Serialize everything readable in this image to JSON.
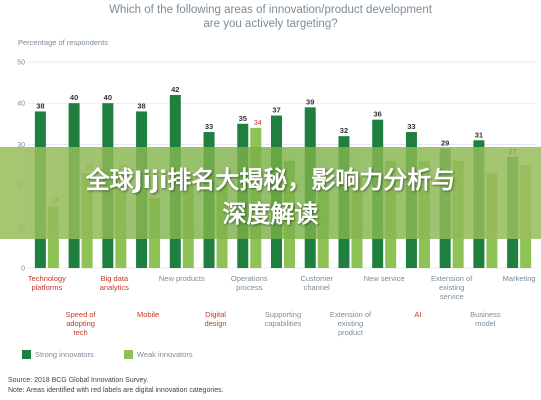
{
  "chart_data": {
    "type": "bar",
    "title": "Which of the following areas of innovation/product development are you actively targeting?",
    "ylabel": "Percentage of respondents",
    "ylim": [
      0,
      50
    ],
    "yticks": [
      0,
      10,
      20,
      30,
      40,
      50
    ],
    "categories": [
      "Technology platforms",
      "Speed of adopting tech",
      "Big data analytics",
      "Mobile",
      "New products",
      "Digital design",
      "Operations process",
      "Supporting capabilities",
      "Customer channel",
      "Extension of existing product",
      "New service",
      "AI",
      "Extension of existing service",
      "Business model",
      "Marketing"
    ],
    "red_label_categories": [
      "Technology platforms",
      "Speed of adopting tech",
      "Big data analytics",
      "Mobile",
      "Digital design",
      "AI"
    ],
    "series": [
      {
        "name": "Strong innovators",
        "color": "#1e7f3f",
        "values": [
          38,
          40,
          40,
          38,
          42,
          33,
          35,
          37,
          39,
          32,
          36,
          33,
          29,
          31,
          27
        ]
      },
      {
        "name": "Weak innovators",
        "color": "#8fc255",
        "values": [
          15,
          23,
          23,
          17,
          23,
          20,
          34,
          26,
          24,
          22,
          26,
          26,
          26,
          23,
          25
        ]
      }
    ],
    "value_labels": [
      {
        "strong": "38",
        "weak": "15"
      },
      {
        "strong": "40",
        "weak": "23"
      },
      {
        "strong": "40",
        "weak": "23"
      },
      {
        "strong": "38",
        "weak": "17"
      },
      {
        "strong": "42",
        "weak": ""
      },
      {
        "strong": "33",
        "weak": ""
      },
      {
        "strong": "35",
        "weak": "34"
      },
      {
        "strong": "37",
        "weak": ""
      },
      {
        "strong": "39",
        "weak": ""
      },
      {
        "strong": "32",
        "weak": ""
      },
      {
        "strong": "36",
        "weak": ""
      },
      {
        "strong": "33",
        "weak": ""
      },
      {
        "strong": "29",
        "weak": ""
      },
      {
        "strong": "31",
        "weak": ""
      },
      {
        "strong": "27",
        "weak": ""
      }
    ],
    "legend": [
      "Strong innovators",
      "Weak innovators"
    ],
    "grid": true
  },
  "overlay": {
    "line1": "全球Jiji排名大揭秘，影响力分析与",
    "line2": "深度解读"
  },
  "source": {
    "line1": "Source: 2018 BCG Global Innovation Survey.",
    "line2": "Note: Areas identified with red labels are digital innovation categories."
  },
  "colors": {
    "strong": "#1e7f3f",
    "weak": "#8fc255",
    "red_label": "#c0392b",
    "gray_label": "#7c8b99"
  }
}
